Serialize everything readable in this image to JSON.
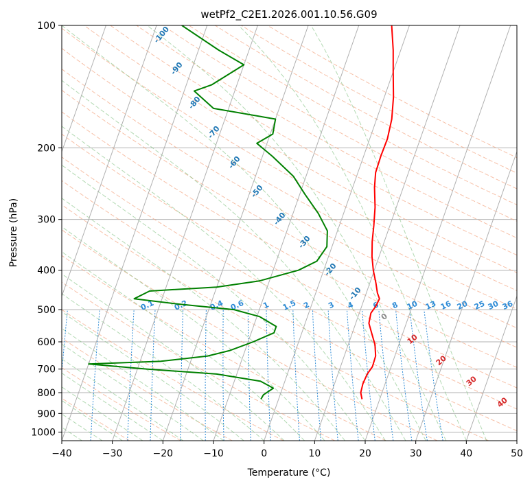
{
  "chart_data": {
    "type": "skew-t",
    "title": "wetPf2_C2E1.2026.001.10.56.G09",
    "xlabel": "Temperature (°C)",
    "ylabel": "Pressure (hPa)",
    "xlim": [
      -40,
      50
    ],
    "ylim": [
      1050,
      100
    ],
    "y_scale": "log",
    "grid": true,
    "x_ticks": [
      -40,
      -30,
      -20,
      -10,
      0,
      10,
      20,
      30,
      40,
      50
    ],
    "y_ticks": [
      1000,
      900,
      800,
      700,
      600,
      500,
      400,
      300,
      200,
      100
    ],
    "series": [
      {
        "color": "#ff0000",
        "points": [
          {
            "p": 830,
            "t": 16.5
          },
          {
            "p": 800,
            "t": 15.8
          },
          {
            "p": 760,
            "t": 15.6
          },
          {
            "p": 720,
            "t": 15.8
          },
          {
            "p": 690,
            "t": 16.3
          },
          {
            "p": 650,
            "t": 16.2
          },
          {
            "p": 610,
            "t": 15.3
          },
          {
            "p": 570,
            "t": 13.8
          },
          {
            "p": 540,
            "t": 12.6
          },
          {
            "p": 510,
            "t": 12.3
          },
          {
            "p": 490,
            "t": 12.8
          },
          {
            "p": 470,
            "t": 13.0
          },
          {
            "p": 455,
            "t": 12.2
          },
          {
            "p": 430,
            "t": 11.2
          },
          {
            "p": 400,
            "t": 9.8
          },
          {
            "p": 370,
            "t": 8.6
          },
          {
            "p": 340,
            "t": 7.6
          },
          {
            "p": 310,
            "t": 6.8
          },
          {
            "p": 280,
            "t": 5.8
          },
          {
            "p": 250,
            "t": 4.3
          },
          {
            "p": 230,
            "t": 3.5
          },
          {
            "p": 210,
            "t": 3.4
          },
          {
            "p": 190,
            "t": 3.5
          },
          {
            "p": 170,
            "t": 3.0
          },
          {
            "p": 150,
            "t": 1.8
          },
          {
            "p": 130,
            "t": 0.0
          },
          {
            "p": 115,
            "t": -1.5
          },
          {
            "p": 100,
            "t": -3.5
          }
        ]
      },
      {
        "color": "#008000",
        "points": [
          {
            "p": 830,
            "t": -3.5
          },
          {
            "p": 810,
            "t": -3.3
          },
          {
            "p": 780,
            "t": -1.8
          },
          {
            "p": 750,
            "t": -4.8
          },
          {
            "p": 720,
            "t": -14.0
          },
          {
            "p": 700,
            "t": -28.0
          },
          {
            "p": 680,
            "t": -40.0
          },
          {
            "p": 670,
            "t": -26.0
          },
          {
            "p": 650,
            "t": -17.0
          },
          {
            "p": 630,
            "t": -13.0
          },
          {
            "p": 600,
            "t": -9.0
          },
          {
            "p": 570,
            "t": -5.5
          },
          {
            "p": 550,
            "t": -5.5
          },
          {
            "p": 520,
            "t": -9.5
          },
          {
            "p": 500,
            "t": -15.0
          },
          {
            "p": 485,
            "t": -26.0
          },
          {
            "p": 470,
            "t": -35.5
          },
          {
            "p": 450,
            "t": -33.0
          },
          {
            "p": 440,
            "t": -20.0
          },
          {
            "p": 425,
            "t": -12.0
          },
          {
            "p": 400,
            "t": -5.0
          },
          {
            "p": 380,
            "t": -2.0
          },
          {
            "p": 350,
            "t": -1.0
          },
          {
            "p": 320,
            "t": -2.0
          },
          {
            "p": 290,
            "t": -5.0
          },
          {
            "p": 260,
            "t": -9.0
          },
          {
            "p": 235,
            "t": -12.5
          },
          {
            "p": 210,
            "t": -18.0
          },
          {
            "p": 195,
            "t": -22.0
          },
          {
            "p": 185,
            "t": -19.5
          },
          {
            "p": 170,
            "t": -20.0
          },
          {
            "p": 160,
            "t": -33.0
          },
          {
            "p": 145,
            "t": -38.0
          },
          {
            "p": 140,
            "t": -35.0
          },
          {
            "p": 125,
            "t": -30.0
          },
          {
            "p": 115,
            "t": -36.0
          },
          {
            "p": 100,
            "t": -45.0
          }
        ]
      }
    ],
    "mixing_ratio_labels": [
      "0.1",
      "0.2",
      "0.4",
      "0.6",
      "1",
      "1.5",
      "2",
      "3",
      "4",
      "6",
      "8",
      "10",
      "13",
      "16",
      "20",
      "25",
      "30",
      "36"
    ],
    "mixing_ratio_values": [
      0.1,
      0.2,
      0.4,
      0.6,
      1,
      1.5,
      2,
      3,
      4,
      6,
      8,
      10,
      13,
      16,
      20,
      25,
      30,
      36
    ],
    "dry_adiabat_labels": [
      "-100",
      "-90",
      "-80",
      "-70",
      "-60",
      "-50",
      "-40",
      "-30",
      "-20",
      "-10"
    ],
    "moist_adiabat_labels": [
      "0",
      "10",
      "20",
      "30",
      "40"
    ]
  }
}
